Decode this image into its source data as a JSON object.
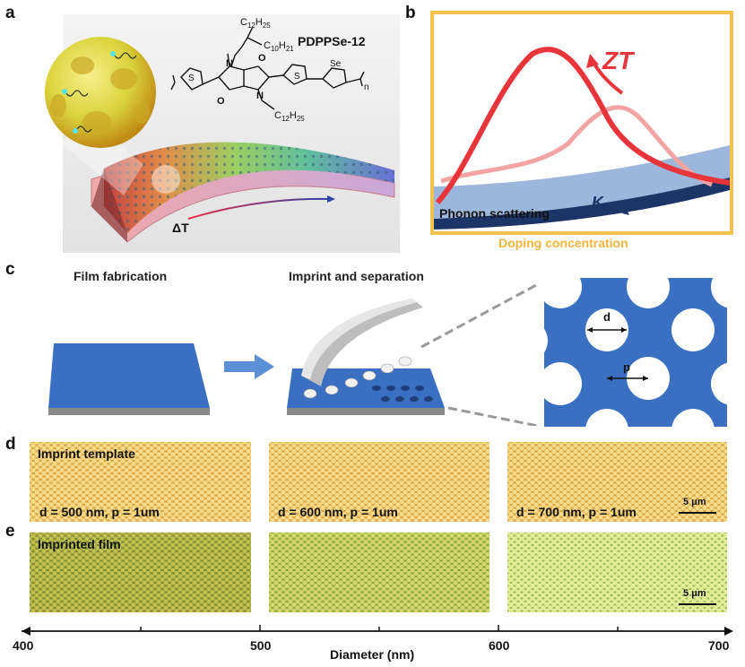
{
  "panels": {
    "a": "a",
    "b": "b",
    "c": "c",
    "d": "d",
    "e": "e"
  },
  "panel_a": {
    "polymer_name": "PDPPSe-12",
    "delta_t": "ΔT",
    "structure_labels": {
      "s1": "S",
      "s2": "S",
      "se": "Se",
      "n1": "N",
      "n2": "N",
      "o1": "O",
      "o2": "O",
      "sub_n": "n",
      "chain_top1": "C",
      "chain_top1_sub": "12",
      "chain_top1_h": "H",
      "chain_top1_hsub": "25",
      "chain_top2": "C",
      "chain_top2_sub": "10",
      "chain_top2_h": "H",
      "chain_top2_hsub": "21",
      "chain_bot": "C",
      "chain_bot_sub": "12",
      "chain_bot_h": "H",
      "chain_bot_hsub": "25"
    }
  },
  "panel_b": {
    "zt_label": "ZT",
    "kappa_label": "K",
    "phonon_label": "Phonon scattering",
    "x_axis_label": "Doping concentration",
    "frame_color": "#f2c14e",
    "zt_color": "#e8343b",
    "zt_light_color": "#f2a3a3",
    "kappa_band_color": "#9db6dc",
    "kappa_dark_color": "#1c3566"
  },
  "panel_c": {
    "step1_label": "Film fabrication",
    "step2_label": "Imprint and separation",
    "d_label": "d",
    "p_label": "p",
    "film_color": "#3b6fc2"
  },
  "panel_d": {
    "title": "Imprint template",
    "labels": [
      "d = 500 nm, p = 1um",
      "d = 600 nm, p = 1um",
      "d = 700 nm, p = 1um"
    ],
    "scale_bar": "5 μm"
  },
  "panel_e": {
    "title": "Imprinted film",
    "scale_bar": "5 μm"
  },
  "axis": {
    "label": "Diameter (nm)",
    "ticks": [
      "400",
      "500",
      "600",
      "700"
    ]
  }
}
